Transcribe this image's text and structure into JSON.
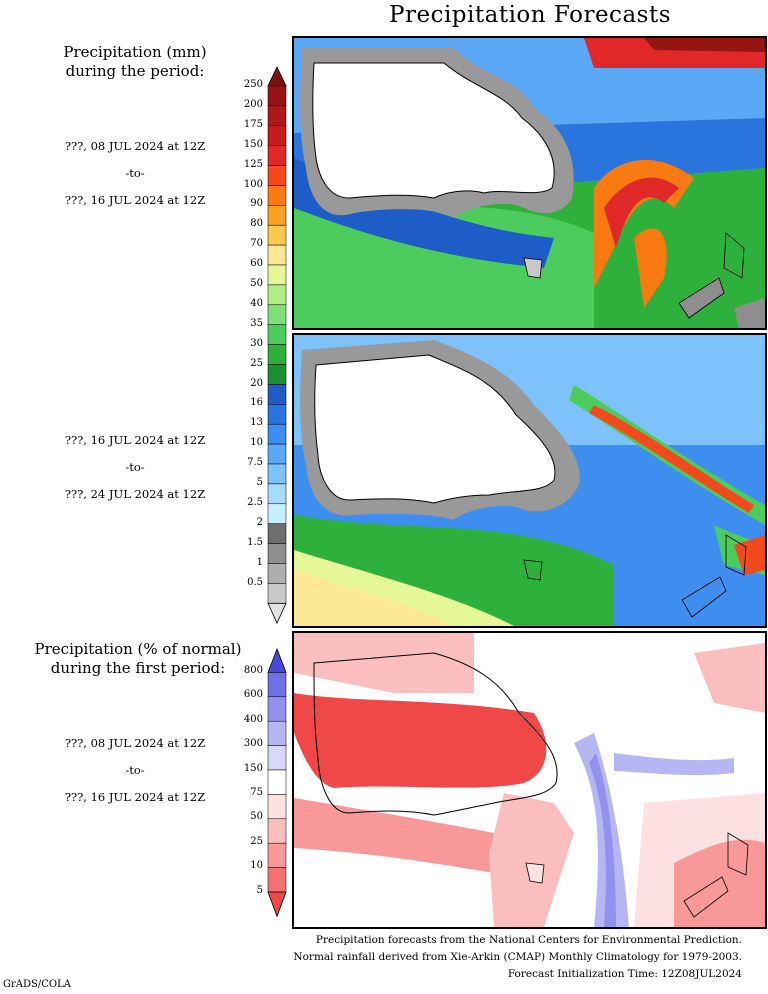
{
  "title": "Precipitation Forecasts",
  "legend_mm": {
    "heading_line1": "Precipitation (mm)",
    "heading_line2": "during the period:",
    "levels": [
      "250",
      "200",
      "175",
      "150",
      "125",
      "100",
      "90",
      "80",
      "70",
      "60",
      "50",
      "40",
      "35",
      "30",
      "25",
      "20",
      "16",
      "13",
      "10",
      "7.5",
      "5",
      "2.5",
      "2",
      "1.5",
      "1",
      "0.5"
    ],
    "colors": [
      "#7a1010",
      "#951414",
      "#b01818",
      "#c81c1c",
      "#e02828",
      "#f24a1c",
      "#f87a10",
      "#fba020",
      "#fbc850",
      "#fde898",
      "#e6f79a",
      "#b2ee88",
      "#7ee07a",
      "#4ccc5c",
      "#2eb03c",
      "#1a9030",
      "#1e5cc8",
      "#2a74de",
      "#3e8ef0",
      "#5aa8f6",
      "#7ec2fb",
      "#a6dbfd",
      "#c8effe",
      "#6e6e6e",
      "#8e8e8e",
      "#aeaeae",
      "#c8c8c8",
      "#e2e2e2"
    ]
  },
  "legend_pct": {
    "heading_line1": "Precipitation (% of normal)",
    "heading_line2": "during the first period:",
    "levels": [
      "800",
      "600",
      "400",
      "300",
      "150",
      "75",
      "50",
      "25",
      "10",
      "5"
    ],
    "colors": [
      "#4848d8",
      "#6e70e6",
      "#9292ee",
      "#b6b6f4",
      "#d8d8fa",
      "#ffffff",
      "#fde0e0",
      "#fbbebe",
      "#f89898",
      "#f57272",
      "#f04848"
    ]
  },
  "periods": [
    {
      "start": "???, 08 JUL 2024 at 12Z",
      "sep": "-to-",
      "end": "???, 16 JUL 2024 at 12Z"
    },
    {
      "start": "???, 16 JUL 2024 at 12Z",
      "sep": "-to-",
      "end": "???, 24 JUL 2024 at 12Z"
    },
    {
      "start": "???, 08 JUL 2024 at 12Z",
      "sep": "-to-",
      "end": "???, 16 JUL 2024 at 12Z"
    }
  ],
  "footer": {
    "line1": "Precipitation forecasts from the National Centers for Environmental Prediction.",
    "line2": "Normal rainfall derived from Xie-Arkin (CMAP) Monthly Climatology for 1979-2003.",
    "line3": "Forecast Initialization Time: 12Z08JUL2024"
  },
  "credit": "GrADS/COLA"
}
